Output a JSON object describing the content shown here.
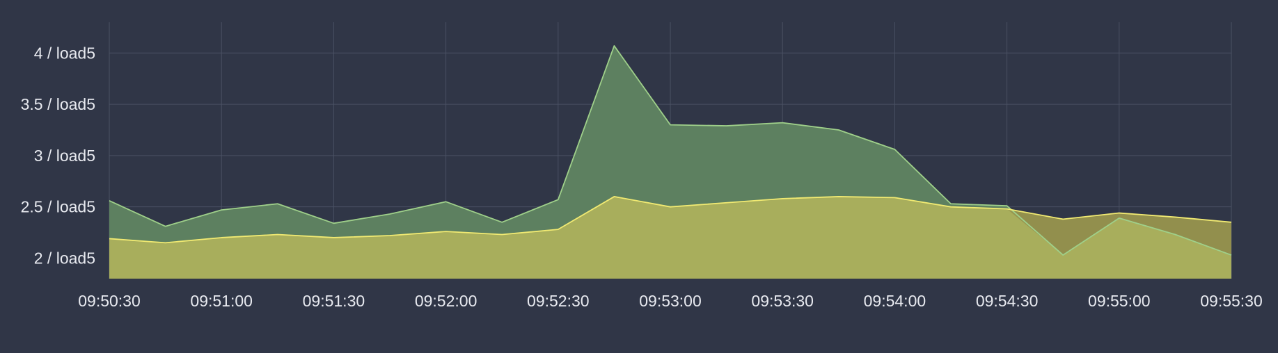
{
  "chart_data": {
    "type": "area",
    "title": "",
    "xlabel": "",
    "ylabel": "",
    "x": [
      "09:50:30",
      "09:50:45",
      "09:51:00",
      "09:51:15",
      "09:51:30",
      "09:51:45",
      "09:52:00",
      "09:52:15",
      "09:52:30",
      "09:52:45",
      "09:53:00",
      "09:53:15",
      "09:53:30",
      "09:53:45",
      "09:54:00",
      "09:54:15",
      "09:54:30",
      "09:54:45",
      "09:55:00",
      "09:55:15",
      "09:55:30"
    ],
    "x_ticks": [
      "09:50:30",
      "09:51:00",
      "09:51:30",
      "09:52:00",
      "09:52:30",
      "09:53:00",
      "09:53:30",
      "09:54:00",
      "09:54:30",
      "09:55:00",
      "09:55:30"
    ],
    "y_ticks": [
      {
        "value": 2,
        "label": "2 / load5"
      },
      {
        "value": 2.5,
        "label": "2.5 / load5"
      },
      {
        "value": 3,
        "label": "3 / load5"
      },
      {
        "value": 3.5,
        "label": "3.5 / load5"
      },
      {
        "value": 4,
        "label": "4 / load5"
      }
    ],
    "ylim": [
      1.8,
      4.3
    ],
    "grid": true,
    "series": [
      {
        "values": [
          2.56,
          2.31,
          2.47,
          2.53,
          2.34,
          2.43,
          2.55,
          2.35,
          2.57,
          4.07,
          3.3,
          3.29,
          3.32,
          3.25,
          3.06,
          2.53,
          2.51,
          2.03,
          2.39,
          2.23,
          2.03
        ],
        "color": "#9fd08a",
        "fill": "#5d8060"
      },
      {
        "values": [
          2.19,
          2.15,
          2.2,
          2.23,
          2.2,
          2.22,
          2.26,
          2.23,
          2.28,
          2.6,
          2.5,
          2.54,
          2.58,
          2.6,
          2.59,
          2.5,
          2.48,
          2.38,
          2.44,
          2.4,
          2.35
        ],
        "color": "#f1ea72",
        "fill": "#9b974e"
      }
    ],
    "colors": {
      "background": "#303647",
      "grid": "#4a5163",
      "text": "#e8eaf0",
      "overlap_fill": "#a8ae5c"
    }
  }
}
